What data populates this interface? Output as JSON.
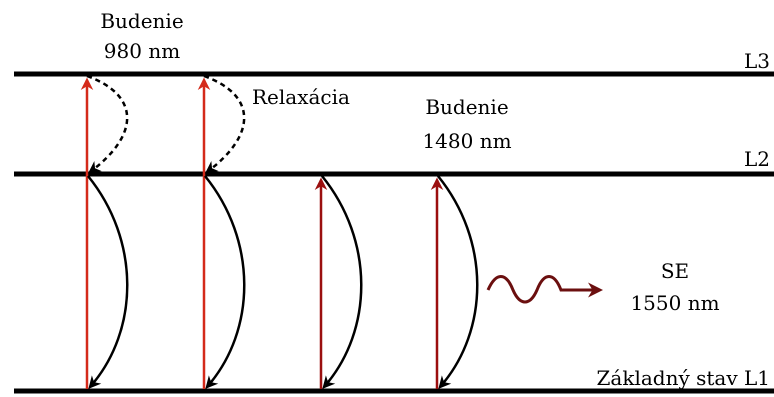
{
  "levels": {
    "l3": "L3",
    "l2": "L2",
    "l1": "Základný stav L1"
  },
  "labels": {
    "excitation_980_line1": "Budenie",
    "excitation_980_line2": "980 nm",
    "relaxation": "Relaxácia",
    "excitation_1480_line1": "Budenie",
    "excitation_1480_line2": "1480 nm",
    "se_line1": "SE",
    "se_line2": "1550 nm"
  },
  "colors": {
    "level_line": "#000000",
    "pump_980_arrow": "#d42a1a",
    "pump_1480_arrow": "#9b0f0f",
    "emission_arrow": "#000000",
    "relaxation_arrow": "#000000",
    "photon_wave": "#6b0f0f"
  }
}
